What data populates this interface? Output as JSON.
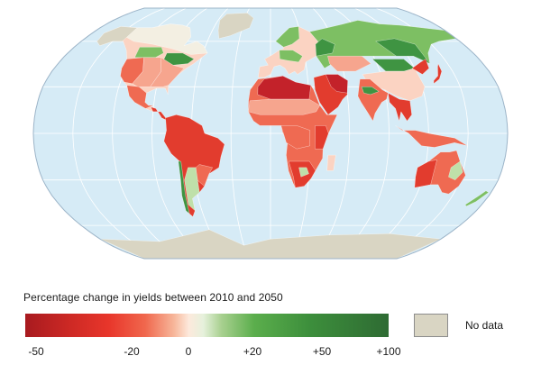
{
  "map": {
    "projection": "robinson",
    "ocean_color": "#d6ebf6",
    "grid_color": "#ffffff",
    "outline_color": "#9cb4c8",
    "colors": {
      "strong_loss": "#c3222a",
      "loss": "#e23c2e",
      "moderate_loss": "#ef6a52",
      "small_loss": "#f6a58e",
      "slight_loss": "#fbd3c2",
      "neutral": "#f3efe2",
      "slight_gain": "#bfe0a9",
      "gain": "#7dbf63",
      "strong_gain": "#3f9442",
      "very_strong_gain": "#2e6b33",
      "no_data": "#d9d5c3"
    }
  },
  "legend": {
    "title": "Percentage change in yields between 2010 and 2050",
    "ticks": [
      {
        "label": "-50",
        "value": -50
      },
      {
        "label": "-20",
        "value": -20
      },
      {
        "label": "0",
        "value": 0
      },
      {
        "label": "+20",
        "value": 20
      },
      {
        "label": "+50",
        "value": 50
      },
      {
        "label": "+100",
        "value": 100
      }
    ],
    "no_data_label": "No data"
  }
}
